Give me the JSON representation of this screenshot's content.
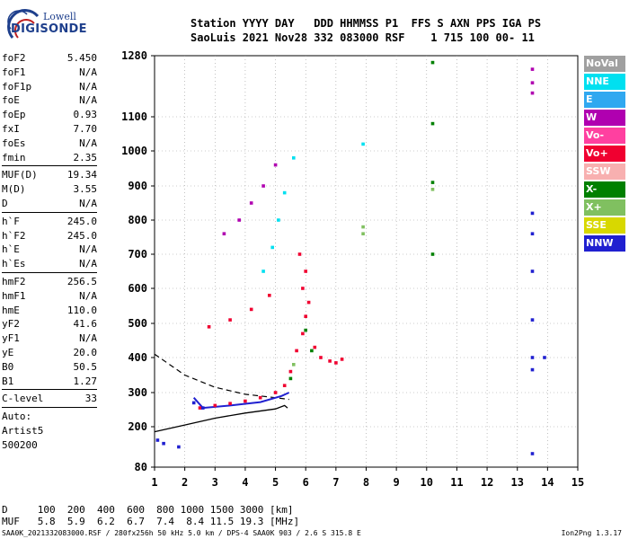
{
  "logo": {
    "line1": "Lowell",
    "line2": "DIGISONDE"
  },
  "header": {
    "line1": "Station YYYY DAY   DDD HHMMSS P1  FFS S AXN PPS IGA PS",
    "line2": "SaoLuis 2021 Nov28 332 083000 RSF    1 715 100 00- 11"
  },
  "params": {
    "group1": [
      {
        "k": "foF2",
        "v": "5.450"
      },
      {
        "k": "foF1",
        "v": "N/A"
      },
      {
        "k": "foF1p",
        "v": "N/A"
      },
      {
        "k": "foE",
        "v": "N/A"
      },
      {
        "k": "foEp",
        "v": "0.93"
      },
      {
        "k": "fxI",
        "v": "7.70"
      },
      {
        "k": "foEs",
        "v": "N/A"
      },
      {
        "k": "fmin",
        "v": "2.35"
      }
    ],
    "group2": [
      {
        "k": "MUF(D)",
        "v": "19.34"
      },
      {
        "k": "M(D)",
        "v": "3.55"
      },
      {
        "k": "D",
        "v": "N/A"
      }
    ],
    "group3": [
      {
        "k": "h`F",
        "v": "245.0"
      },
      {
        "k": "h`F2",
        "v": "245.0"
      },
      {
        "k": "h`E",
        "v": "N/A"
      },
      {
        "k": "h`Es",
        "v": "N/A"
      }
    ],
    "group4": [
      {
        "k": "hmF2",
        "v": "256.5"
      },
      {
        "k": "hmF1",
        "v": "N/A"
      },
      {
        "k": "hmE",
        "v": "110.0"
      },
      {
        "k": "yF2",
        "v": "41.6"
      },
      {
        "k": "yF1",
        "v": "N/A"
      },
      {
        "k": "yE",
        "v": "20.0"
      },
      {
        "k": "B0",
        "v": "50.5"
      },
      {
        "k": "B1",
        "v": "1.27"
      }
    ],
    "group5": [
      {
        "k": "C-level",
        "v": "33"
      }
    ],
    "auto": [
      "Auto:",
      "Artist5",
      "500200"
    ]
  },
  "legend": [
    {
      "label": "NoVal",
      "bg": "#a0a0a0",
      "fg": "#ffffff"
    },
    {
      "label": "NNE",
      "bg": "#00e0f0",
      "fg": "#ffffff"
    },
    {
      "label": "E",
      "bg": "#30a8f0",
      "fg": "#ffffff"
    },
    {
      "label": "W",
      "bg": "#b000b0",
      "fg": "#ffffff"
    },
    {
      "label": "Vo-",
      "bg": "#ff40a0",
      "fg": "#ffffff"
    },
    {
      "label": "Vo+",
      "bg": "#f00030",
      "fg": "#ffffff"
    },
    {
      "label": "SSW",
      "bg": "#f8b0b0",
      "fg": "#ffffff"
    },
    {
      "label": "X-",
      "bg": "#008000",
      "fg": "#ffffff"
    },
    {
      "label": "X+",
      "bg": "#80c060",
      "fg": "#ffffff"
    },
    {
      "label": "SSE",
      "bg": "#d8d800",
      "fg": "#ffffff"
    },
    {
      "label": "NNW",
      "bg": "#2020d0",
      "fg": "#ffffff"
    }
  ],
  "chart_data": {
    "type": "scatter",
    "x_ticks": [
      "1",
      "2",
      "3",
      "4",
      "5",
      "6",
      "7",
      "8",
      "9",
      "10",
      "11",
      "12",
      "13",
      "14",
      "15"
    ],
    "y_ticks": [
      "80",
      "200",
      "300",
      "400",
      "500",
      "600",
      "700",
      "800",
      "900",
      "1000",
      "1100",
      "1280"
    ],
    "y_tick_values": [
      80,
      200,
      300,
      400,
      500,
      600,
      700,
      800,
      900,
      1000,
      1100,
      1280
    ],
    "xlim": [
      1,
      15
    ],
    "ylim": [
      80,
      1280
    ],
    "y_scale": "nonlinear",
    "series": [
      {
        "name": "Vo+",
        "color": "#f00030",
        "points": [
          [
            2.5,
            255
          ],
          [
            3.0,
            262
          ],
          [
            3.5,
            268
          ],
          [
            4.0,
            275
          ],
          [
            4.5,
            285
          ],
          [
            5.0,
            300
          ],
          [
            5.3,
            320
          ],
          [
            5.5,
            360
          ],
          [
            5.7,
            420
          ],
          [
            5.9,
            470
          ],
          [
            6.0,
            520
          ],
          [
            6.1,
            560
          ],
          [
            6.3,
            430
          ],
          [
            6.5,
            400
          ],
          [
            6.8,
            390
          ],
          [
            7.0,
            385
          ],
          [
            7.2,
            395
          ],
          [
            5.9,
            600
          ],
          [
            6.0,
            650
          ],
          [
            5.8,
            700
          ],
          [
            2.8,
            490
          ],
          [
            3.5,
            510
          ],
          [
            4.2,
            540
          ],
          [
            4.8,
            580
          ]
        ]
      },
      {
        "name": "W",
        "color": "#b000b0",
        "points": [
          [
            3.3,
            760
          ],
          [
            3.8,
            800
          ],
          [
            4.2,
            850
          ],
          [
            4.6,
            900
          ],
          [
            5.0,
            960
          ],
          [
            13.5,
            1240
          ],
          [
            13.5,
            1200
          ],
          [
            13.5,
            1170
          ]
        ]
      },
      {
        "name": "NNE",
        "color": "#00e0f0",
        "points": [
          [
            4.6,
            650
          ],
          [
            4.9,
            720
          ],
          [
            5.1,
            800
          ],
          [
            5.3,
            880
          ],
          [
            5.6,
            980
          ],
          [
            7.9,
            1020
          ]
        ]
      },
      {
        "name": "X-",
        "color": "#008000",
        "points": [
          [
            5.5,
            340
          ],
          [
            6.0,
            480
          ],
          [
            6.2,
            420
          ],
          [
            10.2,
            1260
          ],
          [
            10.2,
            1080
          ],
          [
            10.2,
            910
          ],
          [
            10.2,
            700
          ]
        ]
      },
      {
        "name": "X+",
        "color": "#80c060",
        "points": [
          [
            5.6,
            380
          ],
          [
            7.9,
            780
          ],
          [
            7.9,
            760
          ],
          [
            10.2,
            890
          ]
        ]
      },
      {
        "name": "NNW",
        "color": "#2020d0",
        "points": [
          [
            1.1,
            160
          ],
          [
            1.3,
            150
          ],
          [
            1.8,
            140
          ],
          [
            2.3,
            270
          ],
          [
            2.6,
            255
          ],
          [
            13.5,
            820
          ],
          [
            13.5,
            760
          ],
          [
            13.5,
            650
          ],
          [
            13.5,
            510
          ],
          [
            13.5,
            400
          ],
          [
            13.5,
            365
          ],
          [
            13.5,
            120
          ],
          [
            13.9,
            400
          ]
        ]
      }
    ],
    "profile_solid": [
      [
        1,
        185
      ],
      [
        2,
        205
      ],
      [
        3,
        225
      ],
      [
        4,
        240
      ],
      [
        5,
        252
      ],
      [
        5.3,
        262
      ],
      [
        5.4,
        255
      ]
    ],
    "profile_dashed": [
      [
        1,
        410
      ],
      [
        2,
        350
      ],
      [
        3,
        315
      ],
      [
        4,
        295
      ],
      [
        5,
        285
      ],
      [
        5.45,
        280
      ]
    ],
    "trace_line": [
      [
        2.3,
        285
      ],
      [
        2.6,
        255
      ],
      [
        3.5,
        262
      ],
      [
        4.5,
        272
      ],
      [
        5.2,
        290
      ],
      [
        5.45,
        300
      ]
    ]
  },
  "muf_table": {
    "line1": "D     100  200  400  600  800 1000 1500 3000 [km]",
    "line2": "MUF   5.8  5.9  6.2  6.7  7.4  8.4 11.5 19.3 [MHz]"
  },
  "footer": {
    "file": "SAA0K_2021332083000.RSF / 280fx256h 50 kHz 5.0 km / DPS-4 SAA0K 903 / 2.6 S 315.8 E",
    "version": "Ion2Png 1.3.17"
  }
}
